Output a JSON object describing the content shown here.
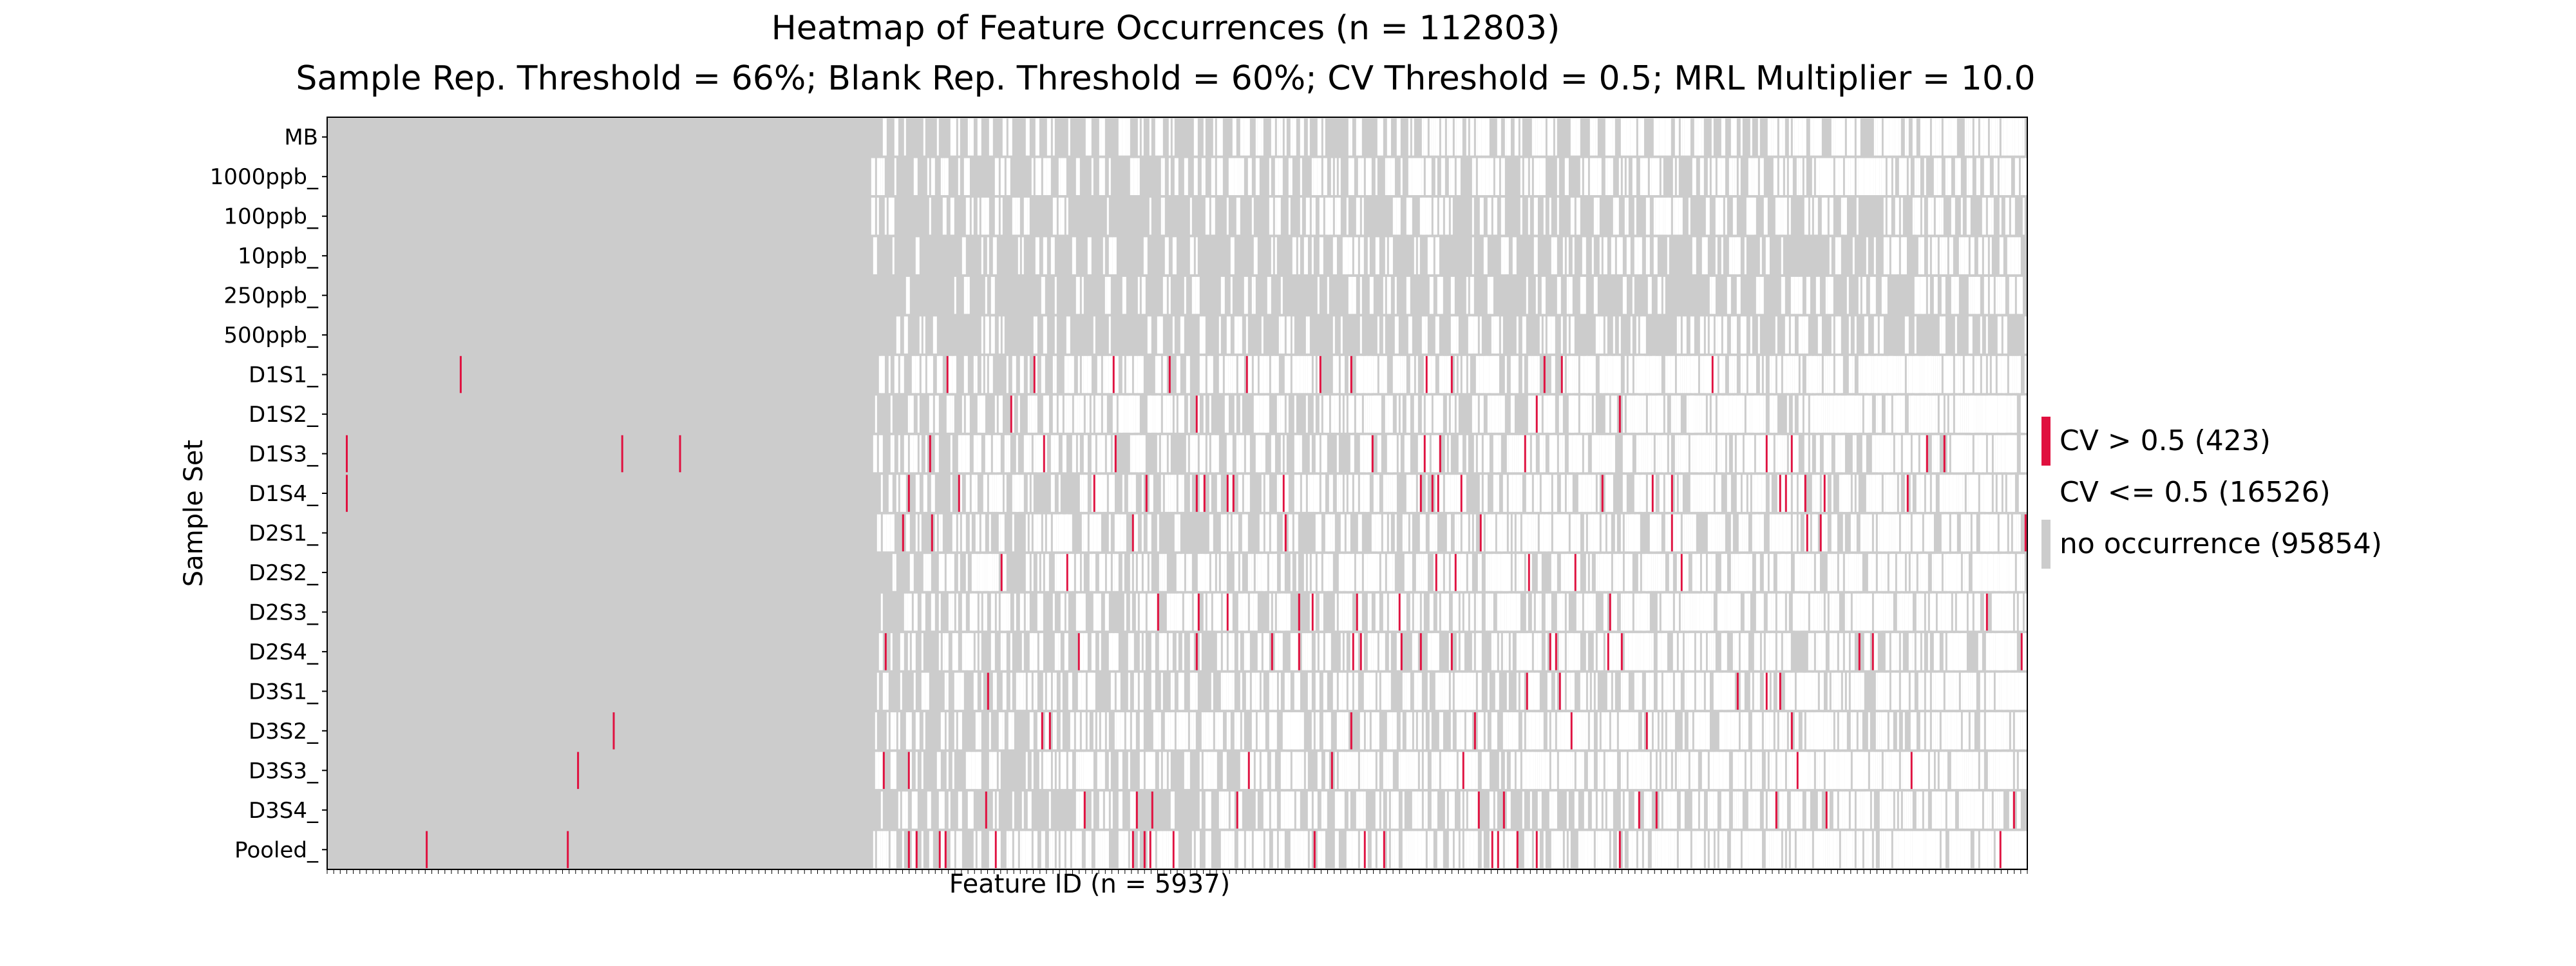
{
  "chart_data": {
    "type": "heatmap",
    "title": "Heatmap of Feature Occurrences (n = 112803)",
    "subtitle": "Sample Rep. Threshold = 66%; Blank Rep. Threshold = 60%; CV Threshold = 0.5; MRL Multiplier = 10.0",
    "xlabel": "Feature ID (n = 5937)",
    "ylabel": "Sample Set",
    "rows": [
      "MB",
      "1000ppb_",
      "100ppb_",
      "10ppb_",
      "250ppb_",
      "500ppb_",
      "D1S1_",
      "D1S2_",
      "D1S3_",
      "D1S4_",
      "D2S1_",
      "D2S2_",
      "D2S3_",
      "D2S4_",
      "D3S1_",
      "D3S2_",
      "D3S3_",
      "D3S4_",
      "Pooled_"
    ],
    "n_features": 5937,
    "grid": false,
    "legend_position": "right",
    "legend": [
      {
        "label": "CV > 0.5 (423)",
        "count": 423,
        "color": "#e0103f",
        "key": "high_cv"
      },
      {
        "label": "CV <= 0.5 (16526)",
        "count": 16526,
        "color": "#ffffff",
        "key": "low_cv"
      },
      {
        "label": "no occurrence (95854)",
        "count": 95854,
        "color": "#cccccc",
        "key": "none"
      }
    ],
    "pattern_note": "First ~32% of features occur only in MB-free rows as no occurrence for all sample sets except scattered CV > 0.5 marks; remaining features show mixed occurrences.",
    "sparse_high_cv_marks_in_left_region": [
      {
        "row": "D1S1_",
        "feature_fraction": 0.078
      },
      {
        "row": "D1S3_",
        "feature_fraction": 0.011
      },
      {
        "row": "D1S3_",
        "feature_fraction": 0.173
      },
      {
        "row": "D1S3_",
        "feature_fraction": 0.207
      },
      {
        "row": "D1S4_",
        "feature_fraction": 0.011
      },
      {
        "row": "D3S2_",
        "feature_fraction": 0.168
      },
      {
        "row": "D3S3_",
        "feature_fraction": 0.147
      },
      {
        "row": "Pooled_",
        "feature_fraction": 0.058
      },
      {
        "row": "Pooled_",
        "feature_fraction": 0.141
      }
    ]
  }
}
